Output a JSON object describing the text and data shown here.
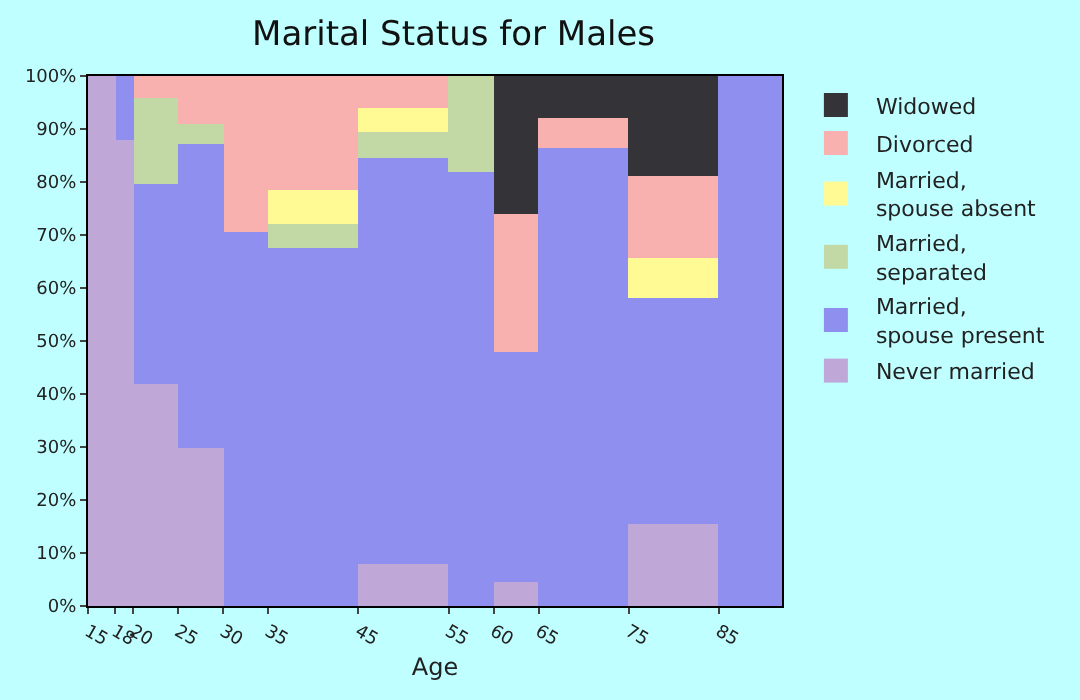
{
  "chart_data": {
    "type": "bar",
    "stacked": true,
    "title": "Marital Status for Males",
    "xlabel": "Age",
    "x": [
      16.5,
      19,
      22.5,
      27.5,
      32.5,
      40,
      50,
      57.5,
      62.5,
      70,
      80,
      88.5
    ],
    "xlim": [
      15,
      92
    ],
    "xticks": [
      15,
      18,
      20,
      25,
      30,
      35,
      45,
      55,
      60,
      65,
      75,
      85
    ],
    "ylim": [
      0,
      100
    ],
    "yticks": [
      {
        "value": 0,
        "label": "0%"
      },
      {
        "value": 10,
        "label": "10%"
      },
      {
        "value": 20,
        "label": "20%"
      },
      {
        "value": 30,
        "label": "30%"
      },
      {
        "value": 40,
        "label": "40%"
      },
      {
        "value": 50,
        "label": "50%"
      },
      {
        "value": 60,
        "label": "60%"
      },
      {
        "value": 70,
        "label": "70%"
      },
      {
        "value": 80,
        "label": "80%"
      },
      {
        "value": 90,
        "label": "90%"
      },
      {
        "value": 100,
        "label": "100%"
      }
    ],
    "legend": "right",
    "series": [
      {
        "name": "Never married",
        "color": "#bfa8d8",
        "values": [
          100,
          88,
          42,
          30,
          0,
          0,
          8,
          0,
          4.5,
          0,
          15.5,
          0
        ]
      },
      {
        "name": "Married, spouse present",
        "color": "#8f8ff0",
        "values": [
          0,
          12,
          37.5,
          57,
          70.5,
          67.5,
          76.5,
          82,
          43.5,
          86.5,
          42.5,
          100
        ]
      },
      {
        "name": "Married, separated",
        "color": "#c2d9a6",
        "values": [
          0,
          0,
          16.5,
          4,
          0,
          4.5,
          5,
          18,
          0,
          0,
          0,
          0
        ]
      },
      {
        "name": "Married, spouse absent",
        "color": "#fffa94",
        "values": [
          0,
          0,
          0,
          0,
          0,
          6.5,
          4.5,
          0,
          0,
          0,
          7.5,
          0
        ]
      },
      {
        "name": "Divorced",
        "color": "#f9b1b0",
        "values": [
          0,
          0,
          4,
          9,
          29.5,
          21.5,
          6,
          0,
          26,
          5.5,
          15.5,
          0
        ]
      },
      {
        "name": "Widowed",
        "color": "#333338",
        "values": [
          0,
          0,
          0,
          0,
          0,
          0,
          0,
          0,
          26,
          8,
          19,
          0
        ]
      }
    ]
  }
}
